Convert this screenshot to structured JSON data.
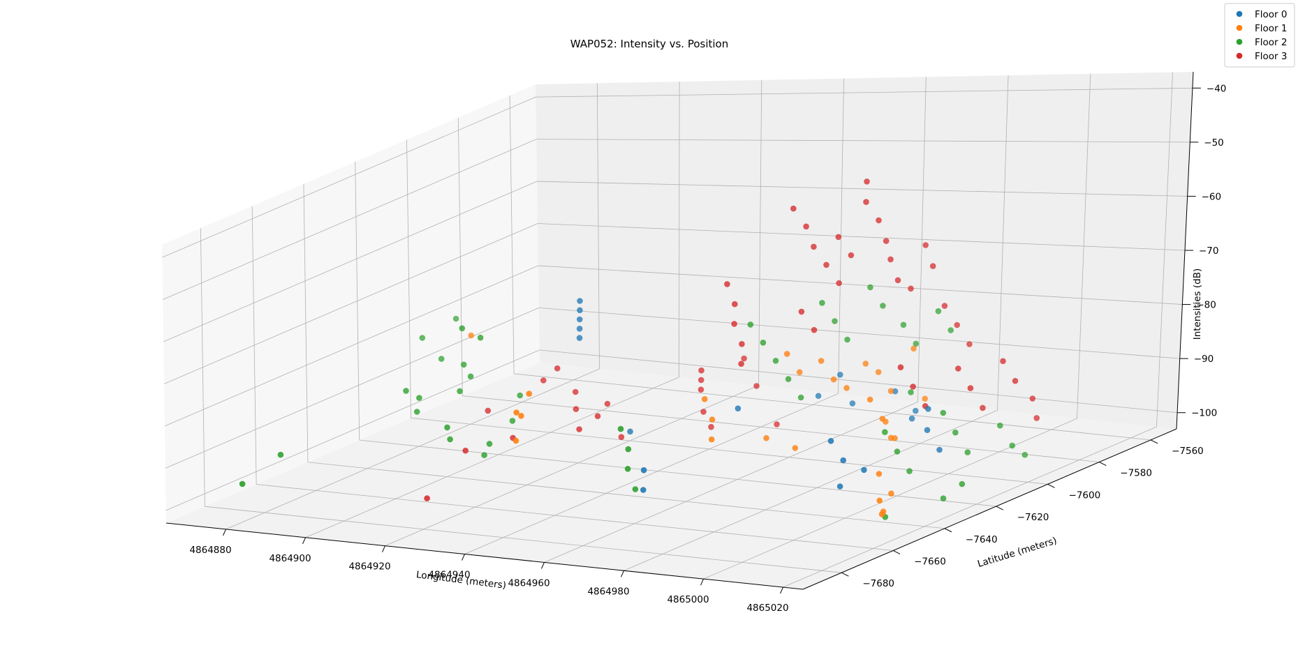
{
  "chart_data": {
    "type": "scatter",
    "projection": "3d",
    "title": "WAP052: Intensity vs. Position",
    "xlabel": "Longitude (meters)",
    "ylabel": "Latitude (meters)",
    "zlabel": "Intensities (dB)",
    "xlim": [
      4864865,
      4865025
    ],
    "ylim": [
      -7695,
      -7550
    ],
    "zlim": [
      -103,
      -37
    ],
    "x_ticks": [
      "4864880",
      "4864900",
      "4864920",
      "4864940",
      "4864960",
      "4864980",
      "4865000",
      "4865020"
    ],
    "y_ticks": [
      "−7680",
      "−7660",
      "−7640",
      "−7620",
      "−7600",
      "−7580",
      "−7560"
    ],
    "z_ticks": [
      "−40",
      "−50",
      "−60",
      "−70",
      "−80",
      "−90",
      "−100"
    ],
    "grid": true,
    "legend_position": "top-right",
    "colors": {
      "Floor 0": "#1f77b4",
      "Floor 1": "#ff7f0e",
      "Floor 2": "#2ca02c",
      "Floor 3": "#d62728"
    },
    "series": [
      {
        "name": "Floor 0",
        "points": [
          [
            4864920,
            -7620,
            -68
          ],
          [
            4864920,
            -7620,
            -70
          ],
          [
            4864920,
            -7620,
            -72
          ],
          [
            4864920,
            -7620,
            -74
          ],
          [
            4864920,
            -7620,
            -76
          ],
          [
            4864962,
            -7660,
            -92
          ],
          [
            4864962,
            -7660,
            -96
          ],
          [
            4864938,
            -7628,
            -93
          ],
          [
            4864972,
            -7608,
            -88
          ],
          [
            4864976,
            -7606,
            -84
          ],
          [
            4864978,
            -7604,
            -90
          ],
          [
            4865002,
            -7650,
            -86
          ],
          [
            4865004,
            -7648,
            -90
          ],
          [
            4865006,
            -7652,
            -94
          ],
          [
            4865008,
            -7646,
            -92
          ],
          [
            4865012,
            -7628,
            -84
          ],
          [
            4865012,
            -7628,
            -88
          ],
          [
            4865014,
            -7626,
            -92
          ],
          [
            4864986,
            -7600,
            -88
          ],
          [
            4864990,
            -7598,
            -92
          ],
          [
            4864966,
            -7630,
            -86
          ],
          [
            4864998,
            -7612,
            -90
          ]
        ]
      },
      {
        "name": "Floor 1",
        "points": [
          [
            4864888,
            -7612,
            -79
          ],
          [
            4864930,
            -7660,
            -88
          ],
          [
            4864928,
            -7652,
            -80
          ],
          [
            4864930,
            -7660,
            -82
          ],
          [
            4864928,
            -7655,
            -84
          ],
          [
            4864964,
            -7640,
            -82
          ],
          [
            4864966,
            -7640,
            -86
          ],
          [
            4864966,
            -7640,
            -90
          ],
          [
            4864974,
            -7624,
            -76
          ],
          [
            4864976,
            -7622,
            -80
          ],
          [
            4864980,
            -7620,
            -78
          ],
          [
            4864982,
            -7618,
            -82
          ],
          [
            4864984,
            -7616,
            -84
          ],
          [
            4864986,
            -7612,
            -80
          ],
          [
            4864988,
            -7610,
            -82
          ],
          [
            4864990,
            -7608,
            -86
          ],
          [
            4864994,
            -7606,
            -78
          ],
          [
            4864996,
            -7604,
            -88
          ],
          [
            4865000,
            -7632,
            -82
          ],
          [
            4865002,
            -7630,
            -86
          ],
          [
            4865004,
            -7628,
            -90
          ],
          [
            4865008,
            -7640,
            -94
          ],
          [
            4865010,
            -7638,
            -98
          ],
          [
            4865012,
            -7644,
            -100
          ],
          [
            4865016,
            -7652,
            -96
          ],
          [
            4865018,
            -7654,
            -98
          ],
          [
            4864998,
            -7620,
            -92
          ],
          [
            4864994,
            -7616,
            -90
          ],
          [
            4864972,
            -7628,
            -92
          ],
          [
            4864978,
            -7626,
            -94
          ]
        ]
      },
      {
        "name": "Floor 2",
        "points": [
          [
            4864874,
            -7596,
            -80
          ],
          [
            4864896,
            -7628,
            -73
          ],
          [
            4864898,
            -7624,
            -76
          ],
          [
            4864872,
            -7606,
            -82
          ],
          [
            4864878,
            -7608,
            -86
          ],
          [
            4864882,
            -7628,
            -88
          ],
          [
            4864884,
            -7626,
            -90
          ],
          [
            4864886,
            -7630,
            -92
          ],
          [
            4864890,
            -7618,
            -84
          ],
          [
            4864893,
            -7620,
            -86
          ],
          [
            4864898,
            -7632,
            -86
          ],
          [
            4864900,
            -7640,
            -92
          ],
          [
            4864902,
            -7642,
            -94
          ],
          [
            4864866,
            -7652,
            -98
          ],
          [
            4864868,
            -7670,
            -100
          ],
          [
            4864904,
            -7618,
            -90
          ],
          [
            4864906,
            -7624,
            -94
          ],
          [
            4864908,
            -7636,
            -96
          ],
          [
            4864908,
            -7638,
            -98
          ],
          [
            4864956,
            -7660,
            -84
          ],
          [
            4864958,
            -7660,
            -88
          ],
          [
            4864958,
            -7660,
            -92
          ],
          [
            4864960,
            -7660,
            -96
          ],
          [
            4864966,
            -7626,
            -70
          ],
          [
            4864968,
            -7624,
            -74
          ],
          [
            4864970,
            -7622,
            -78
          ],
          [
            4864972,
            -7620,
            -82
          ],
          [
            4864974,
            -7618,
            -86
          ],
          [
            4864976,
            -7614,
            -68
          ],
          [
            4864978,
            -7612,
            -72
          ],
          [
            4864980,
            -7610,
            -76
          ],
          [
            4864984,
            -7608,
            -66
          ],
          [
            4864986,
            -7606,
            -70
          ],
          [
            4864990,
            -7604,
            -74
          ],
          [
            4864992,
            -7602,
            -78
          ],
          [
            4864996,
            -7600,
            -72
          ],
          [
            4864998,
            -7598,
            -76
          ],
          [
            4865004,
            -7632,
            -88
          ],
          [
            4865006,
            -7630,
            -92
          ],
          [
            4865008,
            -7628,
            -96
          ],
          [
            4865012,
            -7622,
            -86
          ],
          [
            4865014,
            -7620,
            -90
          ],
          [
            4865016,
            -7618,
            -94
          ],
          [
            4865020,
            -7612,
            -90
          ],
          [
            4865022,
            -7610,
            -94
          ],
          [
            4865024,
            -7608,
            -96
          ],
          [
            4865018,
            -7630,
            -100
          ],
          [
            4865020,
            -7626,
            -98
          ],
          [
            4865010,
            -7640,
            -102
          ],
          [
            4865000,
            -7616,
            -84
          ]
        ]
      },
      {
        "name": "Floor 3",
        "points": [
          [
            4864906,
            -7612,
            -88
          ],
          [
            4864912,
            -7616,
            -84
          ],
          [
            4864914,
            -7612,
            -90
          ],
          [
            4864918,
            -7618,
            -92
          ],
          [
            4864910,
            -7630,
            -96
          ],
          [
            4864922,
            -7612,
            -92
          ],
          [
            4864926,
            -7622,
            -92
          ],
          [
            4864924,
            -7626,
            -94
          ],
          [
            4864902,
            -7636,
            -98
          ],
          [
            4864904,
            -7654,
            -104
          ],
          [
            4864896,
            -7618,
            -94
          ],
          [
            4864932,
            -7622,
            -96
          ],
          [
            4864944,
            -7610,
            -84
          ],
          [
            4864944,
            -7610,
            -86
          ],
          [
            4864944,
            -7610,
            -88
          ],
          [
            4864946,
            -7612,
            -92
          ],
          [
            4864948,
            -7612,
            -95
          ],
          [
            4864952,
            -7606,
            -82
          ],
          [
            4864954,
            -7604,
            -88
          ],
          [
            4864958,
            -7602,
            -96
          ],
          [
            4864960,
            -7626,
            -62
          ],
          [
            4864962,
            -7626,
            -66
          ],
          [
            4864962,
            -7626,
            -70
          ],
          [
            4864964,
            -7626,
            -74
          ],
          [
            4864964,
            -7626,
            -78
          ],
          [
            4864972,
            -7620,
            -48
          ],
          [
            4864974,
            -7618,
            -52
          ],
          [
            4864976,
            -7618,
            -56
          ],
          [
            4864978,
            -7616,
            -60
          ],
          [
            4864980,
            -7614,
            -64
          ],
          [
            4864976,
            -7622,
            -68
          ],
          [
            4864978,
            -7620,
            -72
          ],
          [
            4864982,
            -7618,
            -54
          ],
          [
            4864984,
            -7616,
            -58
          ],
          [
            4864986,
            -7614,
            -44
          ],
          [
            4864986,
            -7614,
            -48
          ],
          [
            4864988,
            -7612,
            -52
          ],
          [
            4864990,
            -7612,
            -56
          ],
          [
            4864990,
            -7610,
            -60
          ],
          [
            4864992,
            -7610,
            -64
          ],
          [
            4864994,
            -7608,
            -66
          ],
          [
            4864996,
            -7606,
            -58
          ],
          [
            4864998,
            -7606,
            -62
          ],
          [
            4865000,
            -7604,
            -70
          ],
          [
            4865002,
            -7602,
            -74
          ],
          [
            4865004,
            -7600,
            -78
          ],
          [
            4865006,
            -7630,
            -76
          ],
          [
            4865008,
            -7628,
            -80
          ],
          [
            4865010,
            -7626,
            -84
          ],
          [
            4865014,
            -7620,
            -78
          ],
          [
            4865016,
            -7618,
            -82
          ],
          [
            4865018,
            -7616,
            -86
          ],
          [
            4865020,
            -7612,
            -78
          ],
          [
            4865022,
            -7610,
            -82
          ],
          [
            4865024,
            -7606,
            -86
          ],
          [
            4865024,
            -7604,
            -90
          ]
        ]
      }
    ]
  }
}
